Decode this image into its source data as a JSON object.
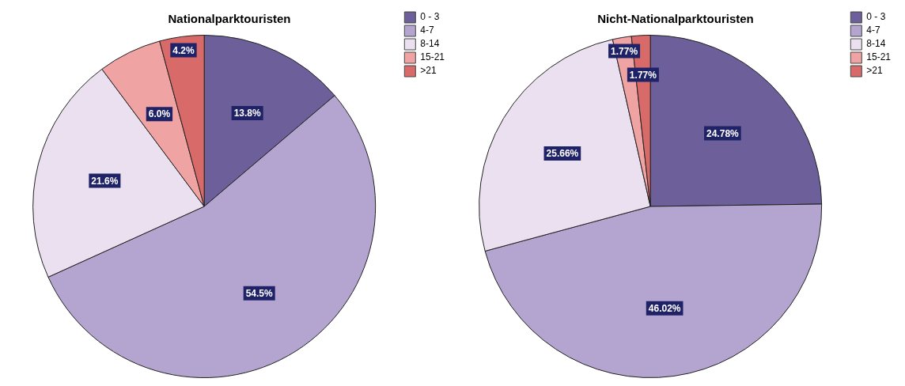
{
  "chart_data": [
    {
      "type": "pie",
      "title": "Nationalparktouristen",
      "categories": [
        "0 - 3",
        "4-7",
        "8-14",
        "15-21",
        ">21"
      ],
      "values": [
        13.8,
        54.5,
        21.6,
        6.0,
        4.2
      ],
      "value_labels": [
        "13.8%",
        "54.5%",
        "21.6%",
        "6.0%",
        "4.2%"
      ],
      "colors": [
        "#6c5f9a",
        "#b4a5d0",
        "#ebe0ef",
        "#f0a3a3",
        "#d96a6a"
      ],
      "legend": "top right"
    },
    {
      "type": "pie",
      "title": "Nicht-Nationalparktouristen",
      "categories": [
        "0 - 3",
        "4-7",
        "8-14",
        "15-21",
        ">21"
      ],
      "values": [
        24.78,
        46.02,
        25.66,
        1.77,
        1.77
      ],
      "value_labels": [
        "24.78%",
        "46.02%",
        "25.66%",
        "1.77%",
        "1.77%"
      ],
      "colors": [
        "#6c5f9a",
        "#b4a5d0",
        "#ebe0ef",
        "#f0a3a3",
        "#d96a6a"
      ],
      "legend": "top right"
    }
  ]
}
